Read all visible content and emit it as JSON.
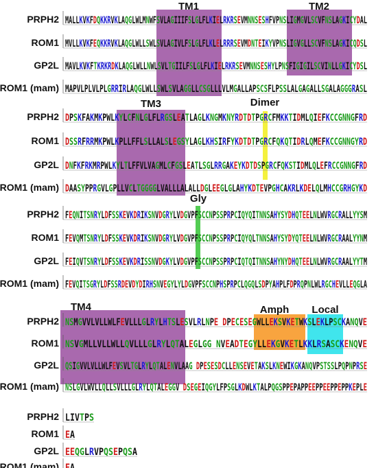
{
  "blocks": [
    {
      "rows": [
        {
          "label": "PRPH2",
          "sequence": "MALLKVKFDQKKRVKLAQGLWLMNWFSVLAGIIIFSLGLFLKIELRKRSEVMNNSESHFVPNSLIGMGVLSCVFNSLAGKICYDAL"
        },
        {
          "label": "ROM1",
          "sequence": "MVLLKVKFEQKKRVKLAQGLWLLSWLSVLAGIVLFSLGLFLKLELRRRSEVMDNTEIKYVPNSLIGVGLLSCVFNSLAGKICQDSL"
        },
        {
          "label": "GP2L",
          "sequence": "MAVLKVKFTKRKRDKLAQGLWLLNWLSVLTGIILFSLGLFLKIELRKRSEVMNNSESHYLPNSFIGIGILSCVINLLGKICYDSL"
        },
        {
          "label": "ROM1 (mam)",
          "sequence": "MAPVLPLVLPLGRRIRLAQGLWLLSWLSVLAGGLLCSGLLLVLMGALLAPSCSFLPSSLALGAGALLSGALAGGGRASL"
        }
      ],
      "regions": [
        {
          "label": "TM1",
          "color": "#9a4fa0"
        },
        {
          "label": "TM2",
          "color": "#9a4fa0"
        }
      ]
    },
    {
      "rows": [
        {
          "label": "PRPH2",
          "sequence": "DPSKFAKMKPWLKYLCFNLGLFLRGSLEATLAGLKNGMKNYRDTDTPGRCFMKKTIDMLQIEFKCCGNNGFRD"
        },
        {
          "label": "ROM1",
          "sequence": "DSSRFRRMKPWLKPLLFFLSLLALSLEGSYLAGLKHSIRFYKDTDTPGRCFQKQTIDRLQMEFKCCGNNGYRD"
        },
        {
          "label": "GP2L",
          "sequence": "DNFKFRKMRPWLKYLTLFFVLVAGMLCFGSLEATLSGLRRGAKEYKDTDSPGRCFQKSTIDMLQLEFRCCGNNGFRD"
        },
        {
          "label": "ROM1 (mam)",
          "sequence": "DAASYPPRGVLGPLLVCLTGGGGLVALLLALALLDGLEEGLGLAHYKDTEVPGHCAKRLKDELQLMHCCGRHGYKD"
        }
      ],
      "regions": [
        {
          "label": "TM3",
          "color": "#9a4fa0"
        },
        {
          "label": "Dimer",
          "color": "#f2ef1c"
        }
      ]
    },
    {
      "rows": [
        {
          "label": "PRPH2",
          "sequence": "FEQNITSNRYLDFSSKEVKDRIKSNVDGRYLVDGVPFSCCNPSSPRPCIQYQITNNSAHYSYDHQTEELNLWVRGCRALLYYSM"
        },
        {
          "label": "ROM1",
          "sequence": "FEVQMTSNRYLDFSSKEVKDRIKSNVDGRYLVDGVPFSCCNPSSPRPCIQYQLTNNSAHYSYDYQTEELNLWVRGCRAALYYNM"
        },
        {
          "label": "GP2L",
          "sequence": "FEIQVTSNRYLDFSSKEVKDRISSNVDGKYLVDGVPFSCCNPSSPRPCIQTQITNNSAHYNYDHQTEELNLWVRGCRAALYYTM"
        },
        {
          "label": "ROM1 (mam)",
          "sequence": "FEVQITSGRYLDFSSRDEVDYDIRHSNVEGYLYLDGVPFSCCNPHSPRPCLQGQLSDPYAHPLFDPRQPNLWLRGCHEVLLEQGLA"
        }
      ],
      "regions": [
        {
          "label": "Gly",
          "color": "#35c435"
        }
      ]
    },
    {
      "rows": [
        {
          "label": "PRPH2",
          "sequence": "NSMGVVLVLLWLFEVLLLGLRYLHTSLESVLRLNPE   DPECESEGWLLEKSVKETWKSLEKLPSCKANQVE"
        },
        {
          "label": "ROM1",
          "sequence": "NSVGMLLVLLWLLQVLLLGLRYLQTALEGLGG   NVEADTEGYLLEKGVKETLKKLRSASCKENQVE"
        },
        {
          "label": "GP2L",
          "sequence": "QSIGVVLVLLWLFEVSVLTGLRYLQTALENVLAAG   DPESESDCLLENSEVETAKSLKNEWIKGKANQVPSTSSLPQPNPRSE"
        },
        {
          "label": "ROM1 (mam)",
          "sequence": "NSLGVLWVLLQLLSVLLLGLRYLQTALEGGV   DSEGEIQGYLFPSGLKDWLKTALPQGSPPEPAPPEEPPEEPPEPPKEPLE"
        }
      ],
      "regions": [
        {
          "label": "TM4",
          "color": "#9a4fa0"
        },
        {
          "label": "Amph",
          "color": "#f7941d"
        },
        {
          "label": "Local",
          "color": "#1ee0ea"
        }
      ]
    },
    {
      "rows": [
        {
          "label": "PRPH2",
          "sequence": "LIVTPS"
        },
        {
          "label": "ROM1",
          "sequence": "EA"
        },
        {
          "label": "GP2L",
          "sequence": "EEQGLRVPQSEPQSA"
        },
        {
          "label": "ROM1 (mam)",
          "sequence": "EA"
        }
      ],
      "regions": []
    }
  ]
}
